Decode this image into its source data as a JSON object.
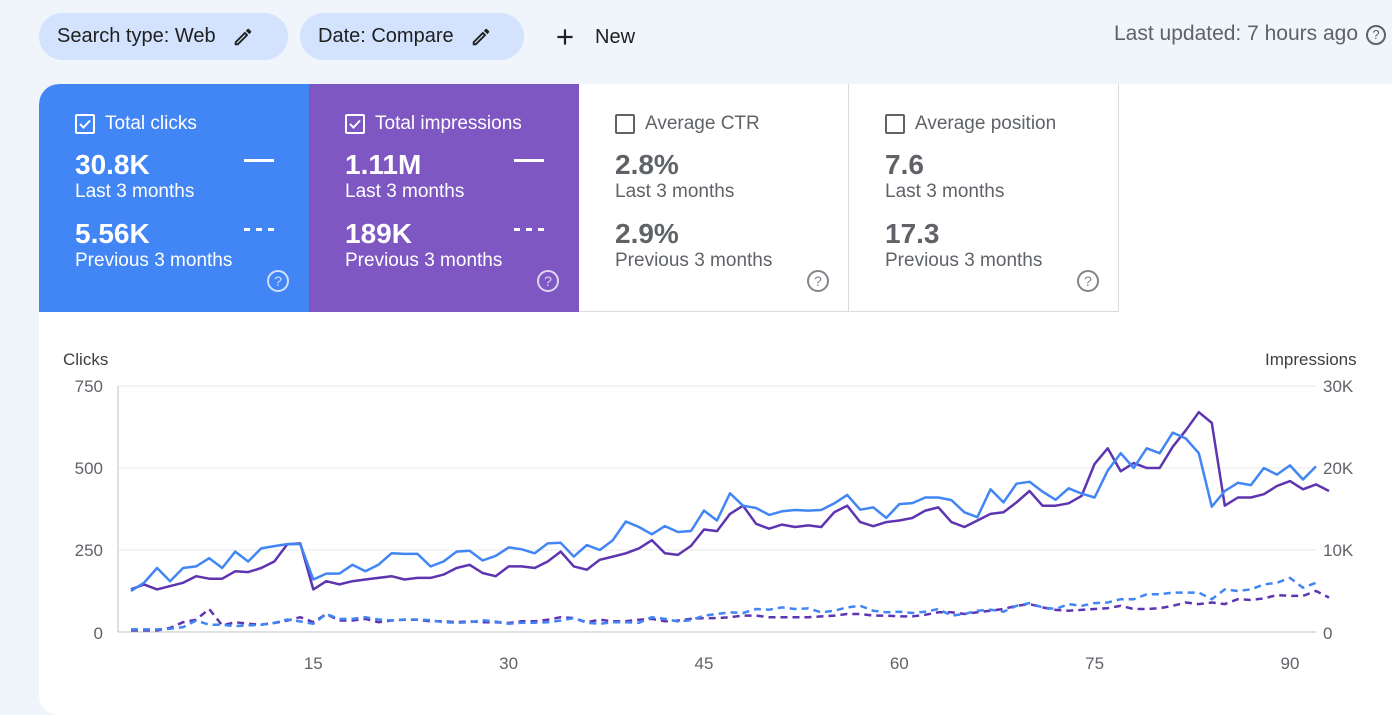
{
  "filters": {
    "search_type": "Search type: Web",
    "date": "Date: Compare",
    "new_label": "New"
  },
  "last_updated": "Last updated: 7 hours ago",
  "metrics": [
    {
      "label": "Total clicks",
      "checked": true,
      "current": "30.8K",
      "current_period": "Last 3 months",
      "previous": "5.56K",
      "previous_period": "Previous 3 months",
      "color": "#4285f4"
    },
    {
      "label": "Total impressions",
      "checked": true,
      "current": "1.11M",
      "current_period": "Last 3 months",
      "previous": "189K",
      "previous_period": "Previous 3 months",
      "color": "#7e57c2"
    },
    {
      "label": "Average CTR",
      "checked": false,
      "current": "2.8%",
      "current_period": "Last 3 months",
      "previous": "2.9%",
      "previous_period": "Previous 3 months"
    },
    {
      "label": "Average position",
      "checked": false,
      "current": "7.6",
      "current_period": "Last 3 months",
      "previous": "17.3",
      "previous_period": "Previous 3 months"
    }
  ],
  "help_glyph": "?",
  "chart_data": {
    "type": "line",
    "left_axis_title": "Clicks",
    "right_axis_title": "Impressions",
    "left_ticks": [
      "750",
      "500",
      "250",
      "0"
    ],
    "right_ticks": [
      "30K",
      "20K",
      "10K",
      "0"
    ],
    "x_ticks": [
      "15",
      "30",
      "45",
      "60",
      "75",
      "90"
    ],
    "x_tick_values": [
      15,
      30,
      45,
      60,
      75,
      90
    ],
    "xlim": [
      0,
      92
    ],
    "left_ylim": [
      0,
      750
    ],
    "right_ylim": [
      0,
      30000
    ],
    "series": [
      {
        "name": "Clicks (last 3 months)",
        "axis": "left",
        "style": "solid",
        "color": "#4285f4",
        "values": [
          125,
          150,
          195,
          155,
          195,
          200,
          225,
          195,
          245,
          215,
          255,
          262,
          268,
          268,
          160,
          178,
          178,
          205,
          185,
          205,
          240,
          238,
          238,
          200,
          215,
          245,
          248,
          218,
          232,
          258,
          252,
          240,
          270,
          272,
          230,
          265,
          250,
          280,
          337,
          320,
          298,
          323,
          305,
          308,
          370,
          340,
          423,
          385,
          378,
          357,
          368,
          372,
          370,
          372,
          392,
          418,
          373,
          380,
          348,
          390,
          393,
          410,
          410,
          402,
          365,
          350,
          435,
          395,
          452,
          458,
          428,
          403,
          438,
          422,
          410,
          492,
          545,
          500,
          560,
          545,
          608,
          590,
          545,
          382,
          430,
          455,
          448,
          500,
          480,
          508,
          465,
          505
        ]
      },
      {
        "name": "Impressions (last 3 months)",
        "axis": "right",
        "style": "solid",
        "color": "#5e35b1",
        "values": [
          5200,
          5800,
          5200,
          5600,
          6000,
          6800,
          6500,
          6500,
          7400,
          7300,
          7800,
          8600,
          10700,
          10800,
          5200,
          6200,
          5800,
          6200,
          6400,
          6600,
          6800,
          6400,
          6600,
          6600,
          7000,
          7800,
          8200,
          7200,
          6800,
          8000,
          8000,
          7800,
          8600,
          9800,
          8000,
          7600,
          8800,
          9200,
          9600,
          10200,
          11200,
          9600,
          9400,
          10500,
          12500,
          12300,
          14400,
          15400,
          13200,
          12600,
          13100,
          12800,
          13000,
          12800,
          14600,
          15400,
          13400,
          12900,
          13400,
          13600,
          13900,
          14800,
          15200,
          13400,
          12800,
          13600,
          14400,
          14600,
          15800,
          17200,
          15400,
          15400,
          15700,
          16600,
          20500,
          22400,
          19600,
          20600,
          20000,
          20000,
          22600,
          24600,
          26800,
          25500,
          15400,
          16400,
          16400,
          16800,
          17800,
          18400,
          17400,
          18000,
          17200
        ]
      },
      {
        "name": "Clicks (previous 3 months)",
        "axis": "left",
        "style": "dashed",
        "color": "#4285f4",
        "values": [
          8,
          8,
          8,
          10,
          15,
          35,
          22,
          22,
          18,
          20,
          22,
          28,
          38,
          32,
          25,
          55,
          40,
          40,
          45,
          38,
          35,
          38,
          38,
          36,
          30,
          28,
          30,
          36,
          32,
          25,
          28,
          28,
          30,
          35,
          42,
          28,
          25,
          30,
          30,
          28,
          45,
          40,
          32,
          36,
          50,
          55,
          60,
          58,
          70,
          68,
          75,
          70,
          72,
          60,
          65,
          75,
          80,
          65,
          60,
          62,
          58,
          62,
          70,
          50,
          55,
          65,
          68,
          62,
          80,
          88,
          75,
          70,
          85,
          80,
          88,
          90,
          100,
          100,
          115,
          115,
          120,
          120,
          120,
          100,
          130,
          125,
          130,
          145,
          150,
          165,
          135,
          150
        ]
      },
      {
        "name": "Impressions (previous 3 months)",
        "axis": "right",
        "style": "dashed",
        "color": "#5e35b1",
        "values": [
          200,
          200,
          200,
          500,
          1200,
          1500,
          2800,
          800,
          1200,
          1000,
          900,
          1100,
          1400,
          1800,
          1200,
          2200,
          1400,
          1400,
          1600,
          1200,
          1400,
          1500,
          1500,
          1300,
          1300,
          1200,
          1300,
          1200,
          1200,
          1100,
          1300,
          1300,
          1500,
          1800,
          1700,
          1200,
          1500,
          1300,
          1300,
          1500,
          1600,
          1300,
          1400,
          1600,
          1700,
          1700,
          1800,
          2000,
          2000,
          1800,
          1800,
          1800,
          1800,
          1900,
          2000,
          2200,
          2200,
          2000,
          2000,
          1900,
          1900,
          2100,
          2400,
          2400,
          2200,
          2400,
          2600,
          2800,
          3200,
          3400,
          3000,
          2700,
          2600,
          2700,
          2800,
          2900,
          3200,
          2800,
          2800,
          2900,
          3200,
          3600,
          3400,
          3600,
          3400,
          4000,
          3900,
          4100,
          4500,
          4400,
          4400,
          5000,
          4200
        ]
      }
    ]
  }
}
